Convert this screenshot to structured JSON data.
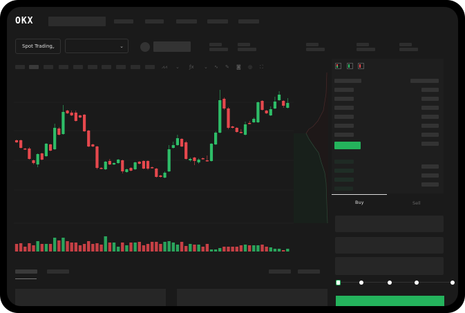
{
  "header": {
    "logo": "OKX",
    "market_type": "Spot Trading"
  },
  "trade_form": {
    "tabs": [
      "Buy",
      "Sell"
    ],
    "active_tab": "Buy",
    "slider_value_percent": 0
  },
  "colors": {
    "up": "#2ebd68",
    "down": "#e5484d",
    "accent": "#24b35c",
    "background": "#1a1a1a"
  },
  "icons": [
    "chevron-down-icon",
    "line-tool-icon",
    "pencil-icon",
    "camera-icon",
    "settings-icon",
    "fullscreen-icon",
    "orderbook-both-icon",
    "orderbook-bids-icon",
    "orderbook-asks-icon"
  ],
  "chart_data": {
    "type": "candlestick",
    "grid": true,
    "candles": [
      [
        97,
        94,
        98,
        93
      ],
      [
        97,
        86,
        98,
        85
      ],
      [
        85,
        84,
        86,
        83
      ],
      [
        85,
        70,
        87,
        69
      ],
      [
        68,
        64,
        69,
        62
      ],
      [
        62,
        77,
        78,
        58
      ],
      [
        78,
        69,
        79,
        68
      ],
      [
        74,
        92,
        93,
        73
      ],
      [
        91,
        82,
        92,
        81
      ],
      [
        84,
        115,
        121,
        83
      ],
      [
        114,
        105,
        116,
        104
      ],
      [
        106,
        138,
        148,
        105
      ],
      [
        140,
        136,
        141,
        135
      ],
      [
        137,
        133,
        140,
        132
      ],
      [
        137,
        125,
        140,
        124
      ],
      [
        133,
        130,
        134,
        129
      ],
      [
        134,
        110,
        135,
        109
      ],
      [
        111,
        88,
        112,
        87
      ],
      [
        91,
        88,
        92,
        87
      ],
      [
        88,
        57,
        89,
        55
      ],
      [
        57,
        56,
        58,
        55
      ],
      [
        55,
        66,
        67,
        54
      ],
      [
        67,
        62,
        70,
        61
      ],
      [
        62,
        64,
        65,
        61
      ],
      [
        64,
        69,
        70,
        63
      ],
      [
        68,
        52,
        69,
        49
      ],
      [
        51,
        55,
        56,
        50
      ],
      [
        57,
        53,
        58,
        52
      ],
      [
        55,
        65,
        66,
        54
      ],
      [
        66,
        63,
        67,
        62
      ],
      [
        67,
        56,
        68,
        55
      ],
      [
        67,
        56,
        68,
        54
      ],
      [
        58,
        57,
        59,
        56
      ],
      [
        56,
        44,
        57,
        43
      ],
      [
        46,
        44,
        47,
        43
      ],
      [
        43,
        50,
        52,
        42
      ],
      [
        52,
        84,
        90,
        51
      ],
      [
        86,
        90,
        95,
        85
      ],
      [
        90,
        100,
        105,
        89
      ],
      [
        99,
        88,
        100,
        87
      ],
      [
        94,
        70,
        96,
        69
      ],
      [
        68,
        70,
        72,
        66
      ],
      [
        72,
        67,
        73,
        61
      ],
      [
        65,
        69,
        71,
        63
      ],
      [
        71,
        70,
        72,
        69
      ],
      [
        68,
        67,
        75,
        66
      ],
      [
        67,
        92,
        93,
        66
      ],
      [
        91,
        108,
        110,
        90
      ],
      [
        108,
        155,
        170,
        107
      ],
      [
        157,
        143,
        159,
        141
      ],
      [
        143,
        115,
        145,
        113
      ],
      [
        117,
        115,
        118,
        114
      ],
      [
        115,
        109,
        116,
        108
      ],
      [
        109,
        108,
        113,
        107
      ],
      [
        105,
        120,
        124,
        104
      ],
      [
        122,
        121,
        125,
        120
      ],
      [
        123,
        128,
        130,
        122
      ],
      [
        123,
        152,
        153,
        122
      ],
      [
        154,
        141,
        155,
        140
      ],
      [
        140,
        136,
        141,
        135
      ],
      [
        133,
        142,
        146,
        132
      ],
      [
        143,
        153,
        160,
        142
      ],
      [
        155,
        163,
        168,
        154
      ],
      [
        154,
        147,
        155,
        144
      ],
      [
        144,
        151,
        158,
        143
      ]
    ],
    "candle_fields": [
      "open",
      "close",
      "high",
      "low"
    ],
    "volume": [
      11,
      12,
      7,
      12,
      9,
      15,
      11,
      11,
      11,
      20,
      16,
      20,
      15,
      13,
      13,
      9,
      11,
      15,
      11,
      12,
      10,
      22,
      13,
      13,
      7,
      13,
      9,
      13,
      13,
      14,
      9,
      11,
      14,
      14,
      11,
      14,
      15,
      13,
      10,
      14,
      8,
      11,
      10,
      10,
      7,
      11,
      3,
      3,
      5,
      7,
      7,
      7,
      7,
      9,
      10,
      9,
      9,
      9,
      10,
      7,
      6,
      4,
      4,
      2,
      4
    ]
  }
}
